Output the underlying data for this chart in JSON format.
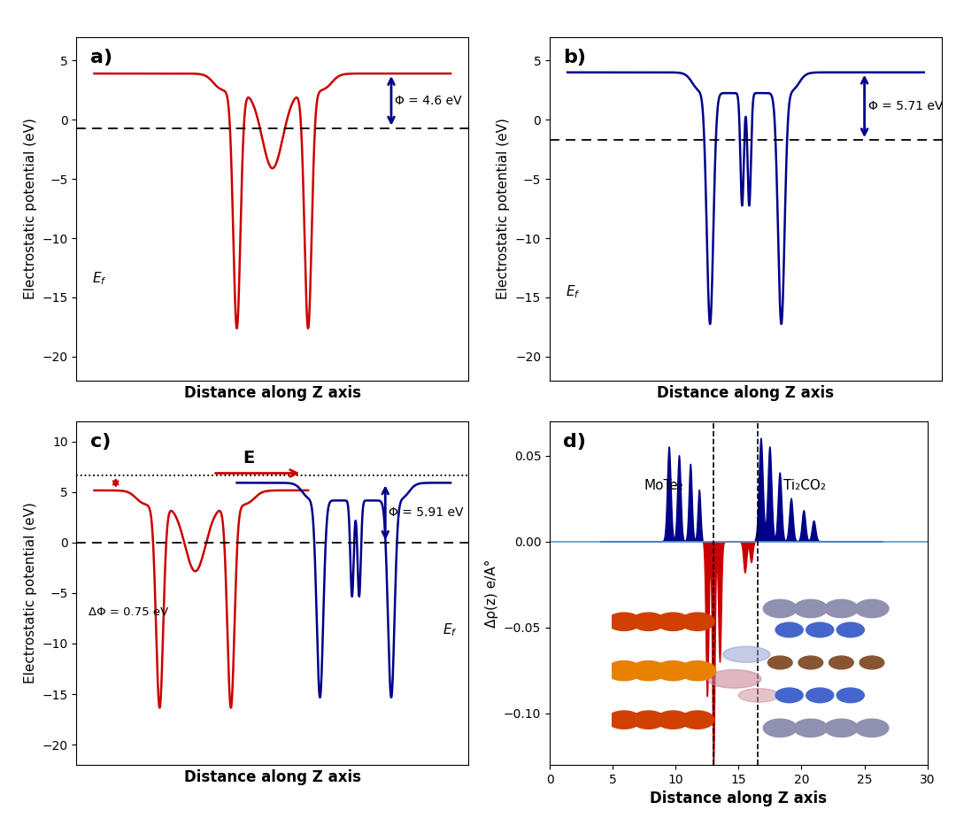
{
  "panel_a": {
    "color": "#cc0000",
    "ef_level": -0.7,
    "vacuum_level": 3.9,
    "phi_text": "Φ = 4.6 eV",
    "ylim": [
      -22,
      7
    ],
    "yticks": [
      -20,
      -15,
      -10,
      -5,
      0,
      5
    ],
    "title": "a)"
  },
  "panel_b": {
    "color": "#00008B",
    "ef_level": -1.71,
    "vacuum_level": 4.0,
    "phi_text": "Φ = 5.71 eV",
    "ylim": [
      -22,
      7
    ],
    "yticks": [
      -20,
      -15,
      -10,
      -5,
      0,
      5
    ],
    "title": "b)"
  },
  "panel_c": {
    "color_red": "#cc0000",
    "color_blue": "#00008B",
    "ef_level": 0.0,
    "vacuum_red": 5.16,
    "vacuum_blue": 5.91,
    "dotted_level": 6.66,
    "phi_text": "Φ = 5.91 eV",
    "delta_phi_text": "ΔΦ = 0.75 eV",
    "ylim": [
      -22,
      12
    ],
    "yticks": [
      -20,
      -15,
      -10,
      -5,
      0,
      5,
      10
    ],
    "title": "c)"
  },
  "panel_d": {
    "title": "d)",
    "xlabel": "Distance along Z axis",
    "ylabel": "Δρ(z) e/A°",
    "xlim": [
      0,
      30
    ],
    "ylim": [
      -0.13,
      0.07
    ],
    "yticks": [
      -0.1,
      -0.05,
      0.0,
      0.05
    ],
    "label_mote2": "MoTe₂",
    "label_ti2co2": "Ti₂CO₂",
    "dashed_x1": 13.0,
    "dashed_x2": 16.5
  },
  "xlabel": "Distance along Z axis",
  "ylabel": "Electrostatic potential (eV)"
}
